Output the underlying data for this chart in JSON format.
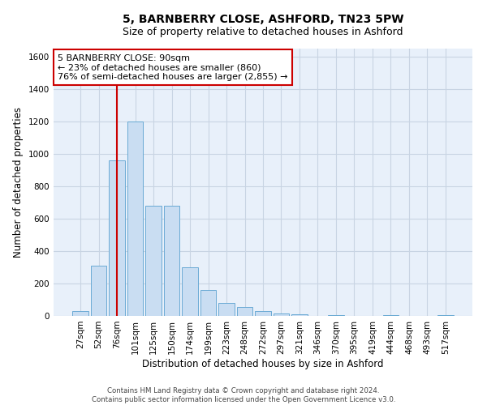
{
  "title_line1": "5, BARNBERRY CLOSE, ASHFORD, TN23 5PW",
  "title_line2": "Size of property relative to detached houses in Ashford",
  "xlabel": "Distribution of detached houses by size in Ashford",
  "ylabel": "Number of detached properties",
  "bar_labels": [
    "27sqm",
    "52sqm",
    "76sqm",
    "101sqm",
    "125sqm",
    "150sqm",
    "174sqm",
    "199sqm",
    "223sqm",
    "248sqm",
    "272sqm",
    "297sqm",
    "321sqm",
    "346sqm",
    "370sqm",
    "395sqm",
    "419sqm",
    "444sqm",
    "468sqm",
    "493sqm",
    "517sqm"
  ],
  "bar_values": [
    30,
    310,
    960,
    1200,
    680,
    680,
    300,
    160,
    80,
    55,
    30,
    15,
    8,
    2,
    3,
    1,
    1,
    3,
    1,
    1,
    3
  ],
  "bar_color": "#c9ddf2",
  "bar_edge_color": "#6aaad4",
  "grid_color": "#c8d4e3",
  "background_color": "#e8f0fa",
  "vline_x_index": 2,
  "vline_color": "#cc0000",
  "annotation_text": "5 BARNBERRY CLOSE: 90sqm\n← 23% of detached houses are smaller (860)\n76% of semi-detached houses are larger (2,855) →",
  "annotation_box_color": "#cc0000",
  "ylim": [
    0,
    1650
  ],
  "yticks": [
    0,
    200,
    400,
    600,
    800,
    1000,
    1200,
    1400,
    1600
  ],
  "footer_text": "Contains HM Land Registry data © Crown copyright and database right 2024.\nContains public sector information licensed under the Open Government Licence v3.0.",
  "title_fontsize": 10,
  "subtitle_fontsize": 9,
  "axis_label_fontsize": 8.5,
  "tick_fontsize": 7.5,
  "annotation_fontsize": 8
}
